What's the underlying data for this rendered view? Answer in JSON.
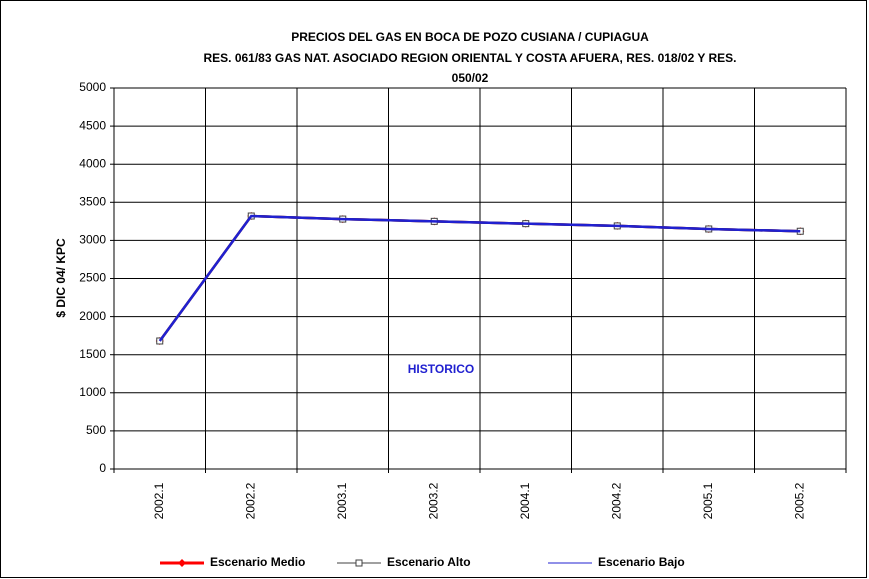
{
  "chart_data": {
    "type": "line",
    "title": [
      "PRECIOS DEL GAS EN BOCA DE POZO CUSIANA / CUPIAGUA",
      "RES. 061/83 GAS NAT. ASOCIADO REGION ORIENTAL Y COSTA AFUERA, RES. 018/02 Y RES.",
      "050/02"
    ],
    "y_label": "$ DIC 04/ KPC",
    "annotation": "HISTORICO",
    "categories": [
      "2002.1",
      "2002.2",
      "2003.1",
      "2003.2",
      "2004.1",
      "2004.2",
      "2005.1",
      "2005.2"
    ],
    "series": [
      {
        "name": "Escenario Medio",
        "color": "#ff0000",
        "marker": "diamond",
        "values": [
          1680,
          3320,
          3280,
          3250,
          3220,
          3190,
          3150,
          3120
        ]
      },
      {
        "name": "Escenario Alto",
        "color": "#404040",
        "marker": "square",
        "values": [
          1680,
          3320,
          3280,
          3250,
          3220,
          3190,
          3150,
          3120
        ]
      },
      {
        "name": "Escenario Bajo",
        "color": "#2020d0",
        "marker": "none",
        "values": [
          1680,
          3320,
          3280,
          3250,
          3220,
          3190,
          3150,
          3120
        ]
      }
    ],
    "ylim": [
      0,
      5000
    ],
    "yticks": [
      0,
      500,
      1000,
      1500,
      2000,
      2500,
      3000,
      3500,
      4000,
      4500,
      5000
    ],
    "grid": true
  }
}
